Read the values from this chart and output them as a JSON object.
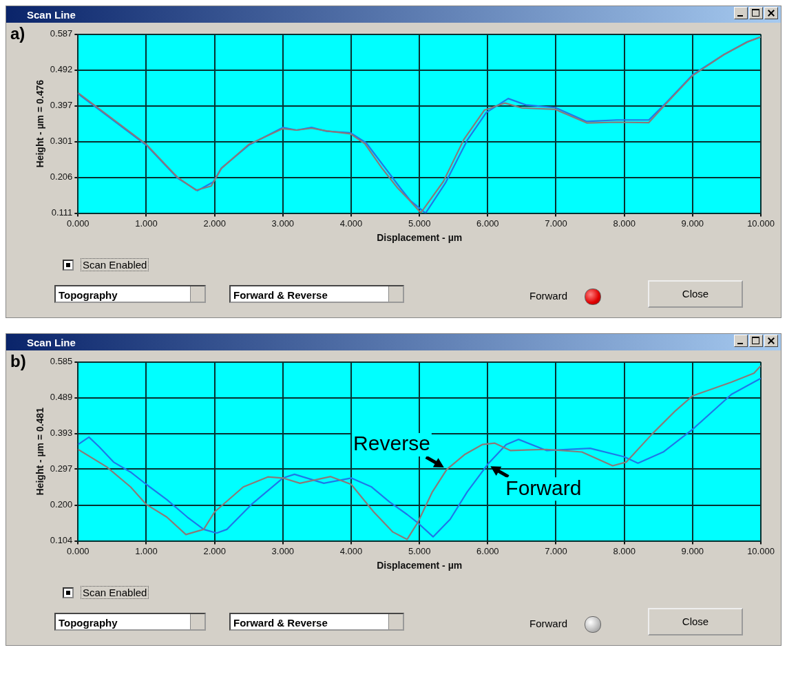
{
  "chart_data": [
    {
      "type": "line",
      "title": "Scan Line",
      "xlabel": "Displacement - µm",
      "ylabel": "Height - µm = 0.476",
      "annotations": [
        "a)",
        "Scan Enabled",
        "Topography",
        "Forward & Reverse",
        "Forward",
        "Close"
      ],
      "xlim": [
        0,
        10
      ],
      "xticks": [
        {
          "value": 0,
          "label": "0.000"
        },
        {
          "value": 1,
          "label": "1.000"
        },
        {
          "value": 2,
          "label": "2.000"
        },
        {
          "value": 3,
          "label": "3.000"
        },
        {
          "value": 4,
          "label": "4.000"
        },
        {
          "value": 5,
          "label": "5.000"
        },
        {
          "value": 6,
          "label": "6.000"
        },
        {
          "value": 7,
          "label": "7.000"
        },
        {
          "value": 8,
          "label": "8.000"
        },
        {
          "value": 9,
          "label": "9.000"
        },
        {
          "value": 10,
          "label": "10.000"
        }
      ],
      "ylim": [
        0.111,
        0.587
      ],
      "yticks": [
        0.111,
        0.206,
        0.301,
        0.397,
        0.492,
        0.587
      ],
      "grid": true,
      "legend": false,
      "marker": "none",
      "series": [
        {
          "color": "#8a7a78",
          "x": [
            0,
            1.0,
            1.46,
            1.73,
            1.95,
            2.1,
            2.5,
            3.0,
            3.2,
            3.42,
            3.64,
            3.99,
            4.2,
            4.45,
            4.68,
            4.85,
            5.02,
            5.35,
            5.65,
            5.95,
            6.25,
            6.5,
            6.99,
            7.45,
            7.89,
            8.36,
            8.62,
            9.0,
            9.46,
            9.8,
            10
          ],
          "values": [
            0.431,
            0.294,
            0.206,
            0.172,
            0.183,
            0.23,
            0.294,
            0.336,
            0.332,
            0.337,
            0.33,
            0.322,
            0.296,
            0.231,
            0.178,
            0.146,
            0.112,
            0.195,
            0.307,
            0.385,
            0.404,
            0.391,
            0.387,
            0.351,
            0.353,
            0.352,
            0.404,
            0.477,
            0.533,
            0.566,
            0.58
          ]
        },
        {
          "color": "#1e78e8",
          "x": [
            0,
            1.0,
            1.46,
            1.75,
            1.98,
            2.1,
            2.5,
            3.0,
            3.2,
            3.42,
            3.64,
            3.99,
            4.22,
            4.5,
            4.72,
            4.87,
            5.09,
            5.38,
            5.7,
            5.98,
            6.3,
            6.56,
            6.99,
            7.45,
            7.89,
            8.36,
            8.62,
            9.0,
            9.46,
            9.8,
            10
          ],
          "values": [
            0.429,
            0.292,
            0.204,
            0.171,
            0.194,
            0.231,
            0.292,
            0.339,
            0.332,
            0.339,
            0.329,
            0.325,
            0.298,
            0.231,
            0.178,
            0.144,
            0.111,
            0.191,
            0.305,
            0.379,
            0.416,
            0.399,
            0.392,
            0.355,
            0.359,
            0.359,
            0.406,
            0.479,
            0.533,
            0.567,
            0.58
          ]
        }
      ]
    },
    {
      "type": "line",
      "title": "Scan Line",
      "xlabel": "Displacement - µm",
      "ylabel": "Height - µm = 0.481",
      "annotations": [
        "b)",
        "Scan Enabled",
        "Topography",
        "Forward & Reverse",
        "Forward",
        "Close"
      ],
      "xlim": [
        0,
        10
      ],
      "xticks": [
        {
          "value": 0,
          "label": "0.000"
        },
        {
          "value": 1,
          "label": "1.000"
        },
        {
          "value": 2,
          "label": "2.000"
        },
        {
          "value": 3,
          "label": "3.000"
        },
        {
          "value": 4,
          "label": "4.000"
        },
        {
          "value": 5,
          "label": "5.000"
        },
        {
          "value": 6,
          "label": "6.000"
        },
        {
          "value": 7,
          "label": "7.000"
        },
        {
          "value": 8,
          "label": "8.000"
        },
        {
          "value": 9,
          "label": "9.000"
        },
        {
          "value": 10,
          "label": "10.000"
        }
      ],
      "ylim": [
        0.104,
        0.585
      ],
      "yticks": [
        {
          "value": 0.104,
          "label": "0.104"
        },
        {
          "value": 0.2,
          "label": "0.200"
        },
        0.297,
        0.393,
        0.489,
        0.585
      ],
      "grid": true,
      "legend": false,
      "marker": "none",
      "series": [
        {
          "name": "Reverse",
          "color": "#8a7a78",
          "x": [
            0,
            0.42,
            0.77,
            1.0,
            1.3,
            1.58,
            1.84,
            2.0,
            2.42,
            2.78,
            3.0,
            3.25,
            3.7,
            4.0,
            4.33,
            4.61,
            4.82,
            4.98,
            5.19,
            5.4,
            5.66,
            5.92,
            6.1,
            6.33,
            6.86,
            7.38,
            7.83,
            8.03,
            8.4,
            8.75,
            9.0,
            9.57,
            9.9,
            10
          ],
          "values": [
            0.35,
            0.303,
            0.249,
            0.202,
            0.168,
            0.121,
            0.135,
            0.182,
            0.249,
            0.276,
            0.273,
            0.259,
            0.277,
            0.256,
            0.182,
            0.128,
            0.108,
            0.155,
            0.236,
            0.296,
            0.336,
            0.363,
            0.367,
            0.347,
            0.35,
            0.343,
            0.306,
            0.316,
            0.39,
            0.454,
            0.494,
            0.531,
            0.555,
            0.575
          ]
        },
        {
          "name": "Forward",
          "color": "#1e78e8",
          "x": [
            0,
            0.16,
            0.31,
            0.52,
            0.77,
            1.0,
            1.3,
            1.6,
            1.84,
            2.03,
            2.18,
            2.54,
            3.0,
            3.17,
            3.6,
            4.0,
            4.3,
            4.56,
            4.82,
            4.98,
            5.2,
            5.45,
            5.7,
            6.0,
            6.27,
            6.45,
            6.86,
            7.5,
            8.0,
            8.2,
            8.57,
            9.0,
            9.57,
            10
          ],
          "values": [
            0.363,
            0.383,
            0.357,
            0.316,
            0.289,
            0.256,
            0.215,
            0.168,
            0.135,
            0.125,
            0.135,
            0.202,
            0.273,
            0.283,
            0.259,
            0.273,
            0.249,
            0.209,
            0.175,
            0.152,
            0.115,
            0.162,
            0.236,
            0.31,
            0.363,
            0.377,
            0.347,
            0.353,
            0.33,
            0.313,
            0.343,
            0.404,
            0.498,
            0.541
          ]
        }
      ]
    }
  ]
}
